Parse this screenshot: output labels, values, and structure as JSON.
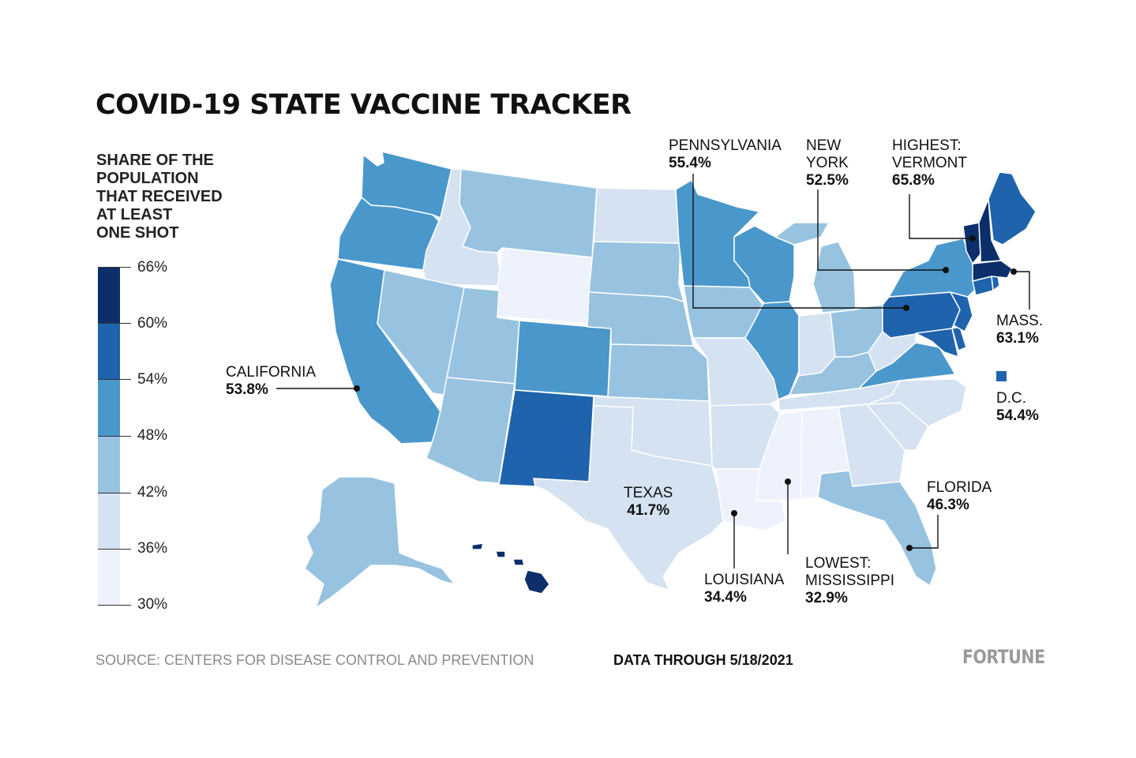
{
  "title": "COVID-19 STATE VACCINE TRACKER",
  "legend": {
    "title_lines": [
      "SHARE OF THE",
      "POPULATION",
      "THAT RECEIVED",
      "AT LEAST",
      "ONE SHOT"
    ],
    "ticks": [
      "66%",
      "60%",
      "54%",
      "48%",
      "42%",
      "36%",
      "30%"
    ],
    "colors": [
      "#0c2f6b",
      "#1f63ad",
      "#4a97cb",
      "#97c3e0",
      "#d4e2f1",
      "#eef2fc"
    ]
  },
  "callouts": {
    "pennsylvania": {
      "name": "PENNSYLVANIA",
      "value": "55.4%"
    },
    "new_york": {
      "name_lines": [
        "NEW",
        "YORK"
      ],
      "value": "52.5%"
    },
    "vermont": {
      "name_lines": [
        "HIGHEST:",
        "VERMONT"
      ],
      "value": "65.8%"
    },
    "mass": {
      "name": "MASS.",
      "value": "63.1%"
    },
    "dc": {
      "name": "D.C.",
      "value": "54.4%"
    },
    "california": {
      "name": "CALIFORNIA",
      "value": "53.8%"
    },
    "texas": {
      "name": "TEXAS",
      "value": "41.7%"
    },
    "florida": {
      "name": "FLORIDA",
      "value": "46.3%"
    },
    "louisiana": {
      "name": "LOUISIANA",
      "value": "34.4%"
    },
    "mississippi": {
      "name_lines": [
        "LOWEST:",
        "MISSISSIPPI"
      ],
      "value": "32.9%"
    }
  },
  "footer": {
    "source": "SOURCE: CENTERS FOR DISEASE CONTROL AND PREVENTION",
    "date": "DATA THROUGH 5/18/2021",
    "logo": "FORTUNE"
  }
}
